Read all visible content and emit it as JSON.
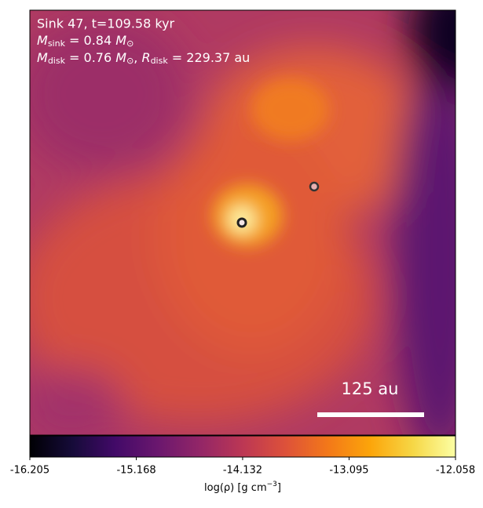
{
  "chart_data": {
    "type": "heatmap",
    "title": "Sink 47, t=109.58 kyr",
    "sink_mass": {
      "symbol": "M",
      "subscript": "sink",
      "equals": " = 0.84 ",
      "unit": "M",
      "unit_subscript": "⊙"
    },
    "disk": {
      "symbol": "M",
      "subscript": "disk",
      "equals": " = 0.76 ",
      "unit": "M",
      "unit_subscript": "⊙",
      "separator": ", ",
      "r_symbol": "R",
      "r_subscript": "disk",
      "r_equals": " = 229.37 au"
    },
    "scale_bar": "125 au",
    "colorbar_label": {
      "text": "log(ρ) [g cm",
      "superscript": "−3",
      "end": "]"
    },
    "colormap": "inferno",
    "clim": [
      -16.205,
      -12.058
    ],
    "cticks": [
      -16.205,
      -15.168,
      -14.132,
      -13.095,
      -12.058
    ]
  }
}
